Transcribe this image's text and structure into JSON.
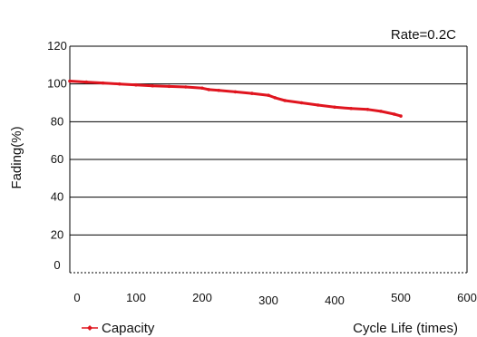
{
  "chart_data": {
    "type": "line",
    "title": "",
    "annotation": "Rate=0.2C",
    "xlabel": "Cycle Life (times)",
    "ylabel": "Fading(%)",
    "xlim": [
      0,
      600
    ],
    "ylim": [
      0,
      120
    ],
    "xticks": [
      0,
      100,
      200,
      300,
      400,
      500,
      600
    ],
    "yticks": [
      0,
      20,
      40,
      60,
      80,
      100,
      120
    ],
    "xtick_labels": [
      "0",
      "100",
      "200",
      "300",
      "400",
      "500",
      "600"
    ],
    "ytick_labels": [
      "0",
      "20",
      "40",
      "60",
      "80",
      "100",
      "120"
    ],
    "grid": "horizontal",
    "legend_position": "bottom-left",
    "series": [
      {
        "name": "Capacity",
        "color": "#e0151f",
        "x": [
          0,
          25,
          50,
          75,
          100,
          125,
          150,
          175,
          200,
          210,
          225,
          250,
          275,
          300,
          310,
          325,
          350,
          375,
          400,
          425,
          450,
          470,
          490,
          500
        ],
        "y": [
          101.5,
          101.0,
          100.5,
          100.0,
          99.5,
          99.0,
          98.7,
          98.4,
          97.8,
          97.0,
          96.6,
          95.8,
          95.0,
          94.0,
          92.7,
          91.2,
          90.0,
          88.8,
          87.7,
          87.0,
          86.5,
          85.5,
          84.0,
          83.0
        ]
      }
    ]
  }
}
